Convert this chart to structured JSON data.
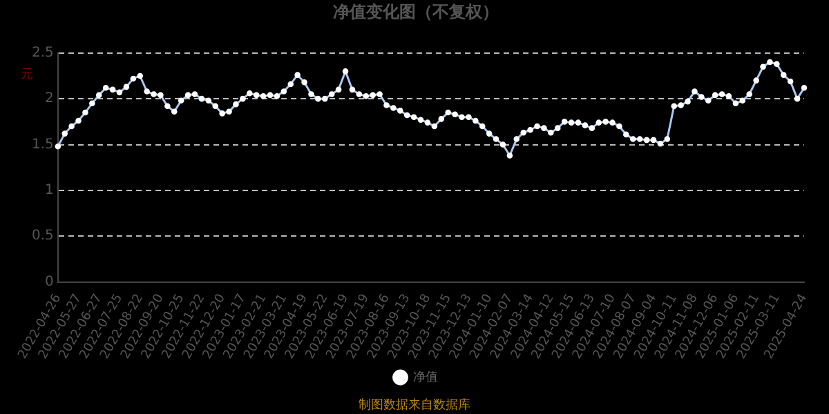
{
  "chart_data": {
    "type": "line",
    "title": "净值变化图（不复权）",
    "ylabel": "元",
    "categories": [
      "2022-04-26",
      null,
      null,
      "2022-05-27",
      null,
      null,
      "2022-06-27",
      null,
      null,
      "2022-07-25",
      null,
      null,
      "2022-08-22",
      null,
      null,
      "2022-09-20",
      null,
      null,
      "2022-10-25",
      null,
      null,
      "2022-11-22",
      null,
      null,
      "2022-12-20",
      null,
      null,
      "2023-01-17",
      null,
      null,
      "2023-02-21",
      null,
      null,
      "2023-03-21",
      null,
      null,
      "2023-04-19",
      null,
      null,
      "2023-05-22",
      null,
      null,
      "2023-06-19",
      null,
      null,
      "2023-07-19",
      null,
      null,
      "2023-08-16",
      null,
      null,
      "2023-09-13",
      null,
      null,
      "2023-10-18",
      null,
      null,
      "2023-11-15",
      null,
      null,
      "2023-12-13",
      null,
      null,
      "2024-01-10",
      null,
      null,
      "2024-02-07",
      null,
      null,
      "2024-03-14",
      null,
      null,
      "2024-04-12",
      null,
      null,
      "2024-05-15",
      null,
      null,
      "2024-06-13",
      null,
      null,
      "2024-07-10",
      null,
      null,
      "2024-08-07",
      null,
      null,
      "2024-09-04",
      null,
      null,
      "2024-10-11",
      null,
      null,
      "2024-11-08",
      null,
      null,
      "2024-12-06",
      null,
      null,
      "2025-01-06",
      null,
      null,
      "2025-02-11",
      null,
      null,
      "2025-03-11",
      null,
      null,
      null,
      "2025-04-24"
    ],
    "series": [
      {
        "name": "净值",
        "color": "#a8c8f0",
        "values": [
          1.48,
          1.62,
          1.7,
          1.76,
          1.85,
          1.95,
          2.04,
          2.12,
          2.1,
          2.07,
          2.13,
          2.22,
          2.25,
          2.08,
          2.05,
          2.04,
          1.92,
          1.86,
          1.98,
          2.04,
          2.05,
          2.0,
          1.98,
          1.92,
          1.84,
          1.86,
          1.94,
          2.0,
          2.06,
          2.04,
          2.03,
          2.04,
          2.03,
          2.08,
          2.16,
          2.26,
          2.18,
          2.05,
          2.0,
          2.0,
          2.05,
          2.1,
          2.3,
          2.1,
          2.05,
          2.03,
          2.04,
          2.05,
          1.93,
          1.9,
          1.87,
          1.82,
          1.8,
          1.77,
          1.74,
          1.7,
          1.78,
          1.85,
          1.83,
          1.8,
          1.8,
          1.76,
          1.7,
          1.62,
          1.56,
          1.5,
          1.38,
          1.56,
          1.63,
          1.66,
          1.7,
          1.68,
          1.63,
          1.68,
          1.75,
          1.74,
          1.74,
          1.71,
          1.68,
          1.74,
          1.75,
          1.74,
          1.7,
          1.61,
          1.56,
          1.56,
          1.55,
          1.55,
          1.51,
          1.56,
          1.92,
          1.93,
          1.97,
          2.08,
          2.02,
          1.98,
          2.04,
          2.05,
          2.03,
          1.95,
          1.98,
          2.05,
          2.2,
          2.35,
          2.4,
          2.38,
          2.26,
          2.19,
          2.0,
          2.12
        ]
      }
    ],
    "ylim": [
      0,
      2.5
    ],
    "yticks": [
      0,
      0.5,
      1,
      1.5,
      2,
      2.5
    ],
    "grid": "y",
    "legend": "bottom",
    "marker": "circle",
    "line_style": "solid",
    "annotations": [
      "制图数据来自数据库"
    ]
  }
}
